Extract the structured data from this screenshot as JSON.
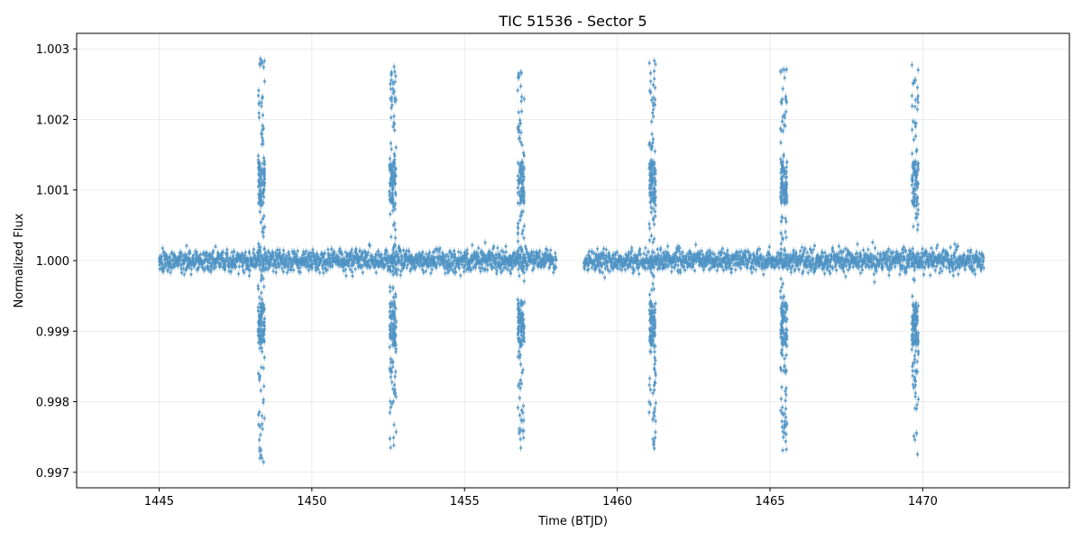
{
  "chart_data": {
    "type": "scatter",
    "title": "TIC 51536 - Sector 5",
    "xlabel": "Time (BTJD)",
    "ylabel": "Normalized Flux",
    "xlim": [
      1442.3,
      1474.8
    ],
    "ylim": [
      0.99678,
      1.00322
    ],
    "x_ticks": [
      1445,
      1450,
      1455,
      1460,
      1465,
      1470
    ],
    "y_ticks": [
      0.997,
      0.998,
      0.999,
      1.0,
      1.001,
      1.002,
      1.003
    ],
    "x_tick_labels": [
      "1445",
      "1450",
      "1455",
      "1460",
      "1465",
      "1470"
    ],
    "y_tick_labels": [
      "0.997",
      "0.998",
      "0.999",
      "1.000",
      "1.001",
      "1.002",
      "1.003"
    ],
    "grid": true,
    "marker_color": "#1f77b4",
    "marker_alpha": 0.6,
    "has_error_bars": true,
    "data_segments": [
      {
        "x_start": 1445.0,
        "x_end": 1458.0
      },
      {
        "x_start": 1458.9,
        "x_end": 1472.0
      }
    ],
    "baseline_flux": 1.0,
    "baseline_scatter": 0.0001,
    "variability_events": [
      {
        "x": 1448.35,
        "y_min": 0.9971,
        "y_max": 1.0029
      },
      {
        "x": 1452.65,
        "y_min": 0.9973,
        "y_max": 1.0028
      },
      {
        "x": 1456.85,
        "y_min": 0.9973,
        "y_max": 1.0028
      },
      {
        "x": 1461.15,
        "y_min": 0.9973,
        "y_max": 1.0029
      },
      {
        "x": 1465.45,
        "y_min": 0.9973,
        "y_max": 1.0028
      },
      {
        "x": 1469.75,
        "y_min": 0.9972,
        "y_max": 1.0028
      }
    ]
  }
}
